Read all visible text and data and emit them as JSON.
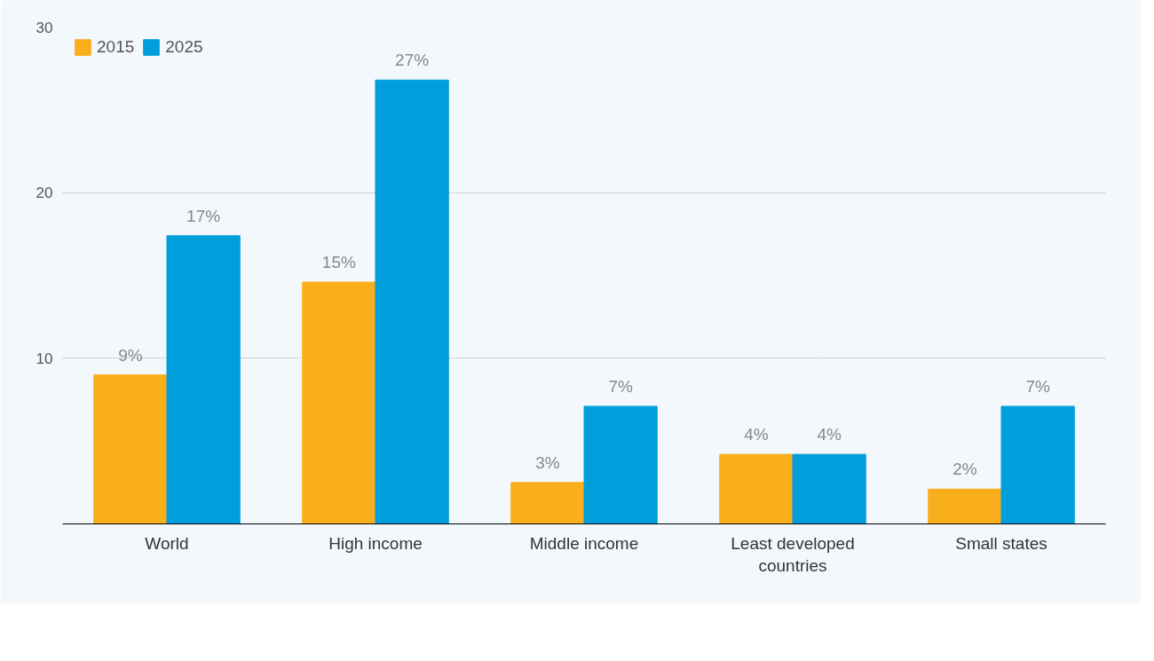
{
  "chart_data": {
    "type": "bar",
    "categories": [
      "World",
      "High income",
      "Middle income",
      "Least developed countries",
      "Small states"
    ],
    "series": [
      {
        "name": "2015",
        "color": "#f9ae1b",
        "values": [
          9.0,
          14.6,
          2.5,
          4.2,
          2.1
        ],
        "value_labels": [
          "9%",
          "15%",
          "3%",
          "4%",
          "2%"
        ]
      },
      {
        "name": "2025",
        "color": "#009edb",
        "values": [
          17.4,
          26.8,
          7.1,
          4.2,
          7.1
        ],
        "value_labels": [
          "17%",
          "27%",
          "7%",
          "4%",
          "7%"
        ]
      }
    ],
    "ylim": [
      0,
      30
    ],
    "yticks": [
      10,
      20,
      30
    ],
    "grid": "y",
    "legend": "top left"
  }
}
